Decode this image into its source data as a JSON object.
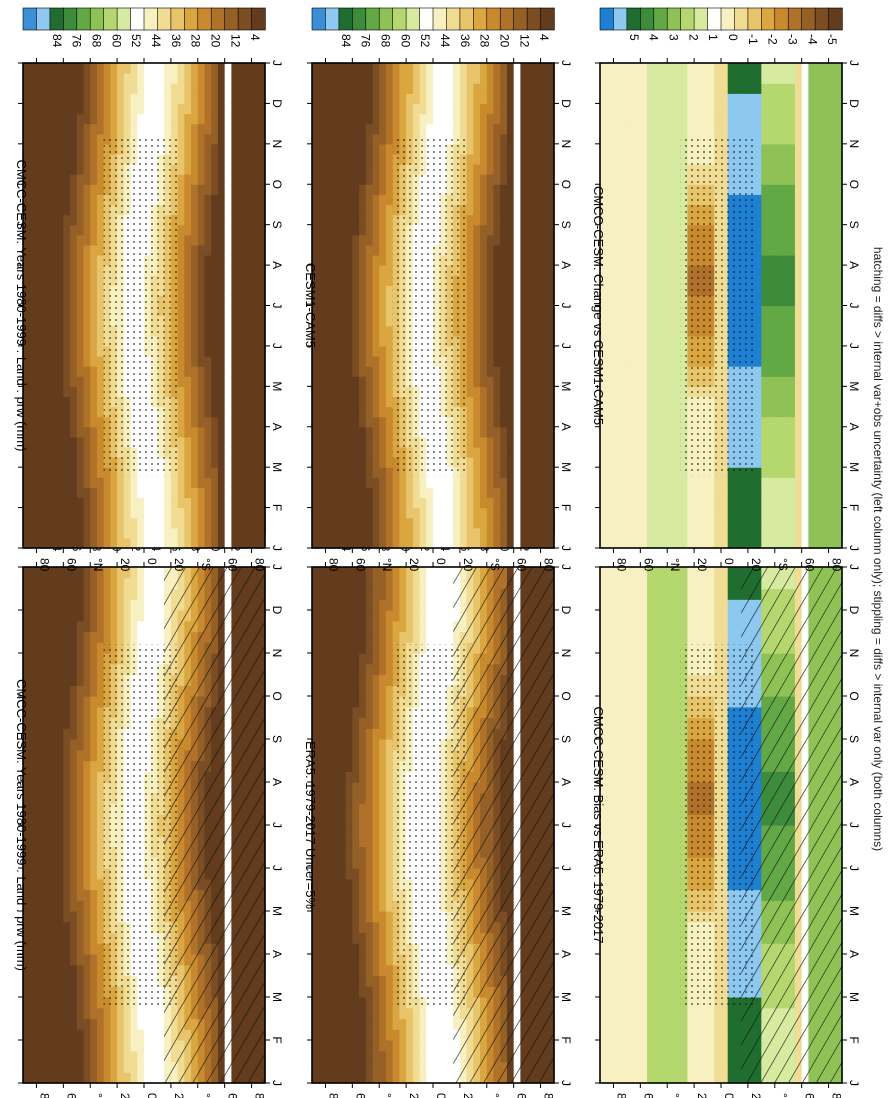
{
  "footnote": "hatching = diffs > internal var+obs uncertainty (left column only); stippling = diffs > internal var only (both columns)",
  "months": [
    "J",
    "F",
    "M",
    "A",
    "M",
    "J",
    "J",
    "A",
    "S",
    "O",
    "N",
    "D",
    "J"
  ],
  "lat_ticks": [
    "80",
    "60",
    "°N",
    "20",
    "0",
    "20",
    "°S",
    "60",
    "80"
  ],
  "abs_colorbar_labels": [
    "84",
    "76",
    "68",
    "60",
    "52",
    "44",
    "36",
    "28",
    "20",
    "12",
    "4"
  ],
  "diff_colorbar_labels": [
    "5",
    "4",
    "3",
    "2",
    "1",
    "0",
    "-1",
    "-2",
    "-3",
    "-4",
    "-5"
  ],
  "colors": {
    "abs_scale": [
      "#3a8fd6",
      "#8fc8f0",
      "#1f6e30",
      "#3c8c3c",
      "#62a845",
      "#8ec254",
      "#b5d86e",
      "#d6eaa0",
      "#ffffff",
      "#f7f0c0",
      "#f0dc93",
      "#e8c46a",
      "#d9a640",
      "#c88a2c",
      "#b07128",
      "#946026",
      "#7a4d22",
      "#623c1c"
    ],
    "diff_scale": [
      "#1e80d2",
      "#8cc8f0",
      "#1f6e30",
      "#3c8c3c",
      "#62a845",
      "#8ec254",
      "#b5d86e",
      "#d6eaa0",
      "#ffffff",
      "#f7f0c0",
      "#f0dc93",
      "#e8c46a",
      "#d9a640",
      "#c88a2c",
      "#b07128",
      "#946026",
      "#7a4d22",
      "#623c1c"
    ]
  },
  "chart_data": [
    {
      "type": "heatmap",
      "title": "CMCC-CESM: Years 1980-1999 : Land : prw (mm)",
      "x": "month",
      "y": "latitude",
      "overlay": "hatching+stippling",
      "colorbar": "abs_scale",
      "zrange": [
        4,
        84
      ],
      "profile": "absolute_model"
    },
    {
      "type": "heatmap",
      "title": "CMCC-CESM: Years 1980-1999 : Land : prw (mm)",
      "x": "month",
      "y": "latitude",
      "overlay": "stippling",
      "colorbar": "abs_scale",
      "zrange": [
        4,
        84
      ],
      "profile": "absolute_model"
    },
    {
      "type": "heatmap",
      "title": "ERA5: 1979-2017 Uncer=5%",
      "x": "month",
      "y": "latitude",
      "overlay": "hatching+stippling",
      "colorbar": "abs_scale",
      "zrange": [
        4,
        84
      ],
      "profile": "absolute_obs"
    },
    {
      "type": "heatmap",
      "title": "CESM1-CAM5",
      "x": "month",
      "y": "latitude",
      "overlay": "stippling",
      "colorbar": "abs_scale",
      "zrange": [
        4,
        84
      ],
      "profile": "absolute_ref"
    },
    {
      "type": "heatmap",
      "title": "CMCC-CESM: Bias vs ERA5: 1979-2017",
      "x": "month",
      "y": "latitude",
      "overlay": "hatching+stippling",
      "colorbar": "diff_scale",
      "zrange": [
        -5,
        5
      ],
      "profile": "bias"
    },
    {
      "type": "heatmap",
      "title": "CMCC-CESM: Change vs CESM1-CAM5",
      "x": "month",
      "y": "latitude",
      "overlay": "stippling",
      "colorbar": "diff_scale",
      "zrange": [
        -5,
        5
      ],
      "profile": "change"
    }
  ]
}
